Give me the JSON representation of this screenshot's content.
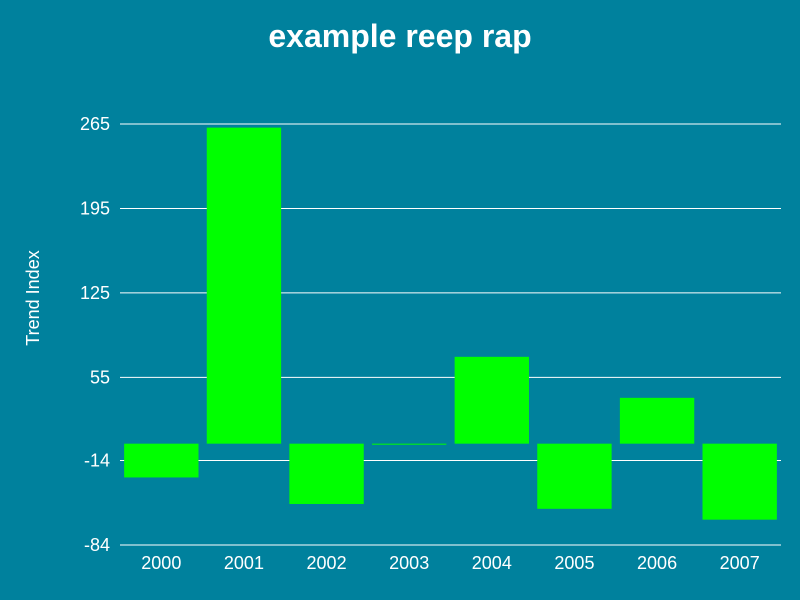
{
  "chart_data": {
    "type": "bar",
    "title": "example reep rap",
    "xlabel": "",
    "ylabel": "Trend Index",
    "categories": [
      "2000",
      "2001",
      "2002",
      "2003",
      "2004",
      "2005",
      "2006",
      "2007"
    ],
    "values": [
      -28,
      262,
      -50,
      0,
      72,
      -54,
      38,
      -63
    ],
    "y_ticks": [
      "-84",
      "-14",
      "55",
      "125",
      "195",
      "265"
    ],
    "ylim": [
      -84,
      265
    ],
    "bar_color": "#00ff00",
    "background_color": "#00819d",
    "grid": true,
    "legend": "none"
  }
}
